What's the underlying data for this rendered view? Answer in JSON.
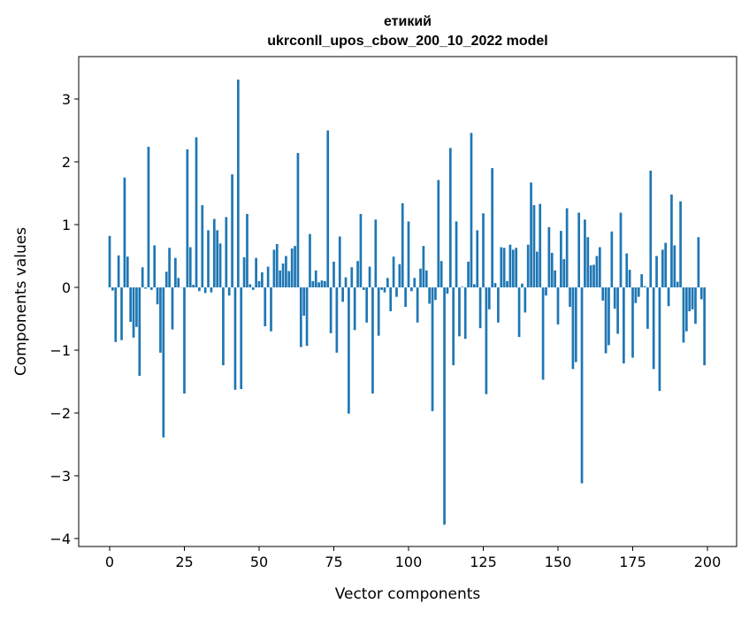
{
  "chart_data": {
    "type": "bar",
    "title": "етикий",
    "subtitle": "ukrconll_upos_cbow_200_10_2022 model",
    "xlabel": "Vector components",
    "ylabel": "Components values",
    "xlim": [
      -10,
      210
    ],
    "ylim": [
      -4.1,
      3.65
    ],
    "xticks": [
      0,
      25,
      50,
      75,
      100,
      125,
      150,
      175,
      200
    ],
    "yticks": [
      -4,
      -3,
      -2,
      -1,
      0,
      1,
      2,
      3
    ],
    "ytick_labels": [
      "−4",
      "−3",
      "−2",
      "−1",
      "0",
      "1",
      "2",
      "3"
    ],
    "grid": false,
    "color": "#1f77b4",
    "values": [
      0.82,
      -0.05,
      -0.87,
      0.51,
      -0.84,
      1.75,
      0.49,
      -0.55,
      -0.8,
      -0.63,
      -1.41,
      0.32,
      -0.02,
      2.24,
      -0.04,
      0.67,
      -0.27,
      -1.04,
      -2.39,
      0.25,
      0.63,
      -0.67,
      0.47,
      0.15,
      0.0,
      -1.69,
      2.2,
      0.64,
      0.04,
      2.39,
      -0.06,
      1.31,
      -0.09,
      0.91,
      -0.08,
      1.09,
      0.91,
      0.7,
      -1.24,
      1.12,
      -0.13,
      1.8,
      -1.63,
      3.31,
      -1.62,
      0.48,
      1.17,
      0.05,
      -0.04,
      0.47,
      0.1,
      0.24,
      -0.62,
      0.33,
      -0.7,
      0.6,
      0.69,
      0.27,
      0.38,
      0.5,
      0.26,
      0.62,
      0.66,
      2.14,
      -0.95,
      -0.45,
      -0.93,
      0.85,
      0.1,
      0.27,
      0.08,
      0.11,
      0.1,
      2.5,
      -0.73,
      0.41,
      -1.04,
      0.81,
      -0.23,
      0.16,
      -2.01,
      0.32,
      -0.68,
      0.42,
      1.17,
      -0.04,
      -0.56,
      0.33,
      -1.69,
      1.08,
      -0.77,
      -0.04,
      -0.08,
      0.15,
      -0.38,
      0.49,
      -0.15,
      0.37,
      1.34,
      -0.31,
      1.05,
      -0.06,
      0.15,
      -0.56,
      0.3,
      0.66,
      0.27,
      -0.26,
      -1.97,
      -0.2,
      1.71,
      0.42,
      -3.78,
      -0.1,
      2.22,
      -1.24,
      1.05,
      -0.78,
      0.01,
      -0.82,
      0.41,
      2.46,
      0.05,
      0.91,
      -0.65,
      1.18,
      -1.7,
      -0.35,
      1.9,
      0.07,
      -0.56,
      0.64,
      0.63,
      0.1,
      0.68,
      0.6,
      0.63,
      -0.79,
      0.06,
      -0.4,
      0.68,
      1.67,
      1.31,
      0.57,
      1.33,
      -1.47,
      -0.13,
      0.96,
      0.55,
      0.27,
      -0.59,
      0.9,
      0.45,
      1.26,
      -0.31,
      -1.3,
      -1.19,
      1.19,
      -3.12,
      1.08,
      0.8,
      0.35,
      0.36,
      0.5,
      0.64,
      -0.21,
      -1.05,
      -0.92,
      0.89,
      -0.34,
      -0.74,
      1.19,
      -1.21,
      0.54,
      0.28,
      -1.12,
      -0.25,
      -0.15,
      0.21,
      0.02,
      -0.66,
      1.86,
      -1.3,
      0.5,
      -1.65,
      0.6,
      0.71,
      -0.3,
      1.48,
      0.67,
      0.09,
      1.37,
      -0.88,
      -0.7,
      -0.38,
      -0.35,
      -0.58,
      0.8,
      -0.19,
      -1.24
    ]
  }
}
